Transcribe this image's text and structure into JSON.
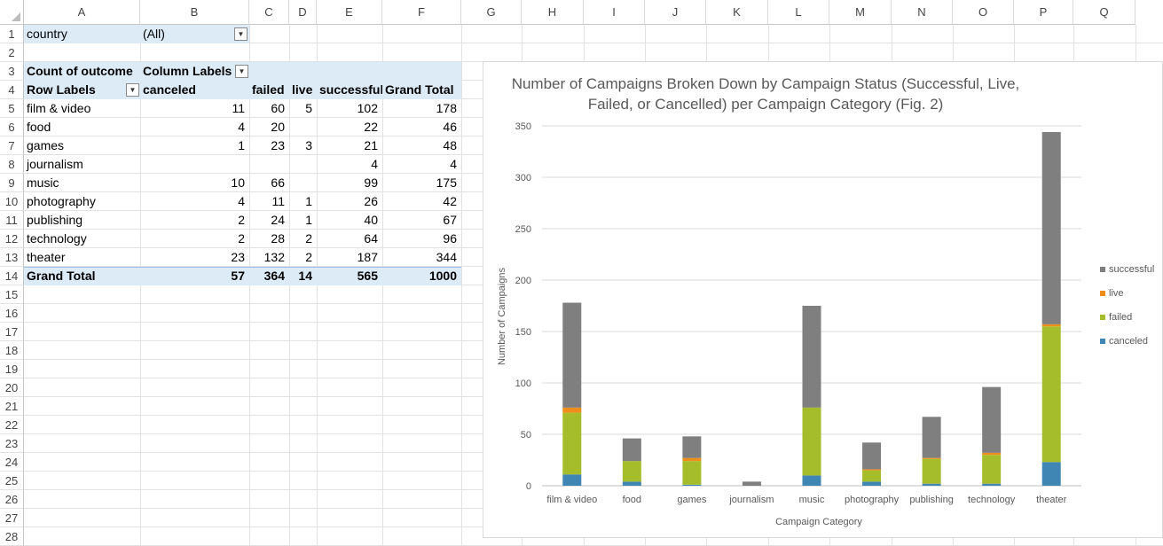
{
  "columns": [
    "A",
    "B",
    "C",
    "D",
    "E",
    "F",
    "G",
    "H",
    "I",
    "J",
    "K",
    "L",
    "M",
    "N",
    "O",
    "P",
    "Q"
  ],
  "rows": [
    "1",
    "2",
    "3",
    "4",
    "5",
    "6",
    "7",
    "8",
    "9",
    "10",
    "11",
    "12",
    "13",
    "14",
    "15",
    "16",
    "17",
    "18",
    "19",
    "20",
    "21",
    "22",
    "23",
    "24",
    "25",
    "26",
    "27",
    "28"
  ],
  "filter": {
    "label": "country",
    "value": "(All)"
  },
  "pivot": {
    "value_label": "Count of outcome",
    "column_labels": "Column Labels",
    "row_labels": "Row Labels",
    "headers": [
      "canceled",
      "failed",
      "live",
      "successful",
      "Grand Total"
    ],
    "records": [
      {
        "label": "film & video",
        "canceled": "11",
        "failed": "60",
        "live": "5",
        "successful": "102",
        "total": "178"
      },
      {
        "label": "food",
        "canceled": "4",
        "failed": "20",
        "live": "",
        "successful": "22",
        "total": "46"
      },
      {
        "label": "games",
        "canceled": "1",
        "failed": "23",
        "live": "3",
        "successful": "21",
        "total": "48"
      },
      {
        "label": "journalism",
        "canceled": "",
        "failed": "",
        "live": "",
        "successful": "4",
        "total": "4"
      },
      {
        "label": "music",
        "canceled": "10",
        "failed": "66",
        "live": "",
        "successful": "99",
        "total": "175"
      },
      {
        "label": "photography",
        "canceled": "4",
        "failed": "11",
        "live": "1",
        "successful": "26",
        "total": "42"
      },
      {
        "label": "publishing",
        "canceled": "2",
        "failed": "24",
        "live": "1",
        "successful": "40",
        "total": "67"
      },
      {
        "label": "technology",
        "canceled": "2",
        "failed": "28",
        "live": "2",
        "successful": "64",
        "total": "96"
      },
      {
        "label": "theater",
        "canceled": "23",
        "failed": "132",
        "live": "2",
        "successful": "187",
        "total": "344"
      }
    ],
    "grand_total": {
      "label": "Grand Total",
      "canceled": "57",
      "failed": "364",
      "live": "14",
      "successful": "565",
      "total": "1000"
    }
  },
  "chart_data": {
    "type": "bar",
    "stacked": true,
    "title": "Number of Campaigns Broken Down by Campaign Status (Successful, Live, Failed, or Cancelled) per Campaign Category (Fig. 2)",
    "title_lines": [
      "Number of Campaigns Broken Down by Campaign Status (Successful, Live,",
      "Failed, or Cancelled) per Campaign Category (Fig. 2)"
    ],
    "xlabel": "Campaign Category",
    "ylabel": "Number of Campaigns",
    "ylim": [
      0,
      350
    ],
    "yticks": [
      0,
      50,
      100,
      150,
      200,
      250,
      300,
      350
    ],
    "grid": true,
    "legend_placement": "right",
    "categories": [
      "film & video",
      "food",
      "games",
      "journalism",
      "music",
      "photography",
      "publishing",
      "technology",
      "theater"
    ],
    "series": [
      {
        "name": "canceled",
        "color": "#4086b4",
        "values": [
          11,
          4,
          1,
          0,
          10,
          4,
          2,
          2,
          23
        ]
      },
      {
        "name": "failed",
        "color": "#a5bd2b",
        "values": [
          60,
          20,
          23,
          0,
          66,
          11,
          24,
          28,
          132
        ]
      },
      {
        "name": "live",
        "color": "#ee8d1a",
        "values": [
          5,
          0,
          3,
          0,
          0,
          1,
          1,
          2,
          2
        ]
      },
      {
        "name": "successful",
        "color": "#7f7f7f",
        "values": [
          102,
          22,
          21,
          4,
          99,
          26,
          40,
          64,
          187
        ]
      }
    ]
  }
}
